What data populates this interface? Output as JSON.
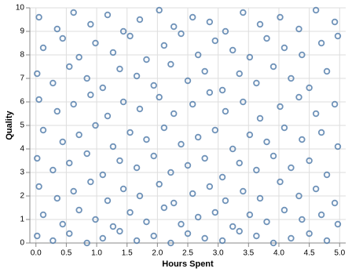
{
  "chart_data": {
    "type": "scatter",
    "x_label": "Hours Spent",
    "y_label": "Quality",
    "color": "#4c78a8",
    "grid": true,
    "xlim": [
      -0.1,
      5.1
    ],
    "ylim": [
      0,
      10
    ],
    "xticks": [
      {
        "value": 0,
        "label": "0.0"
      },
      0.5,
      {
        "value": 1,
        "label": "1.0"
      },
      1.5,
      {
        "value": 2,
        "label": "2.0"
      },
      2.5,
      {
        "value": 3,
        "label": "3.0"
      },
      3.5,
      {
        "value": 4,
        "label": "4.0"
      },
      4.5,
      {
        "value": 5,
        "label": "5.0"
      }
    ],
    "yticks": [
      0,
      1,
      2,
      3,
      4,
      5,
      6,
      7,
      8,
      9,
      10
    ],
    "x": [
      0.05,
      0.35,
      0.62,
      0.9,
      1.18,
      1.44,
      1.71,
      2.03,
      2.27,
      2.58,
      2.86,
      3.12,
      3.41,
      3.69,
      4.02,
      4.33,
      4.61,
      4.92,
      0.12,
      0.44,
      0.71,
      0.98,
      1.27,
      1.55,
      1.82,
      2.11,
      2.39,
      2.67,
      2.95,
      3.24,
      3.52,
      3.8,
      4.09,
      4.38,
      4.7,
      4.97,
      0.02,
      0.28,
      0.55,
      0.84,
      1.1,
      1.38,
      1.66,
      1.94,
      2.22,
      2.5,
      2.78,
      3.07,
      3.35,
      3.63,
      3.91,
      4.2,
      4.5,
      4.79,
      0.05,
      0.35,
      0.62,
      0.9,
      1.18,
      1.44,
      1.71,
      2.03,
      2.27,
      2.58,
      2.86,
      3.12,
      3.41,
      3.69,
      4.02,
      4.33,
      4.61,
      4.92,
      0.12,
      0.44,
      0.71,
      0.98,
      1.27,
      1.55,
      1.82,
      2.11,
      2.39,
      2.67,
      2.95,
      3.24,
      3.52,
      3.8,
      4.09,
      4.38,
      4.7,
      4.97,
      0.02,
      0.28,
      0.55,
      0.84,
      1.1,
      1.38,
      1.66,
      1.94,
      2.22,
      2.5,
      2.78,
      3.07,
      3.35,
      3.63,
      3.91,
      4.2,
      4.5,
      4.79,
      0.05,
      0.35,
      0.62,
      0.9,
      1.18,
      1.44,
      1.71,
      2.03,
      2.27,
      2.58,
      2.86,
      3.12,
      3.41,
      3.69,
      4.02,
      4.33,
      4.61,
      4.92,
      0.12,
      0.44,
      0.71,
      0.98,
      1.27,
      1.55,
      1.82,
      2.11,
      2.39,
      2.67,
      2.95,
      3.24,
      3.52,
      3.8,
      4.09,
      4.38,
      4.7,
      4.97,
      0.02,
      0.28,
      0.55,
      0.84,
      1.1,
      1.38,
      1.66,
      1.94,
      2.22,
      2.5,
      2.78,
      3.07,
      3.35,
      3.63,
      3.91,
      4.2,
      4.5,
      4.79
    ],
    "y": [
      9.6,
      9.1,
      9.8,
      9.3,
      9.7,
      9.0,
      9.5,
      9.9,
      9.2,
      9.6,
      9.4,
      9.0,
      9.8,
      9.3,
      9.6,
      9.1,
      9.9,
      9.4,
      8.3,
      8.7,
      7.9,
      8.5,
      8.1,
      8.8,
      7.8,
      8.4,
      8.9,
      8.0,
      8.6,
      8.2,
      7.9,
      8.7,
      8.3,
      8.0,
      8.5,
      8.8,
      7.2,
      6.8,
      7.5,
      7.0,
      6.6,
      7.4,
      7.1,
      6.7,
      7.6,
      6.9,
      7.3,
      6.5,
      7.2,
      6.8,
      7.5,
      7.0,
      6.6,
      7.3,
      6.1,
      5.6,
      5.9,
      6.3,
      5.4,
      6.0,
      5.7,
      6.2,
      5.5,
      5.9,
      6.4,
      5.6,
      6.0,
      5.3,
      5.8,
      6.2,
      5.5,
      5.9,
      4.8,
      4.3,
      4.6,
      5.0,
      4.1,
      4.7,
      4.4,
      4.9,
      4.2,
      4.5,
      4.8,
      4.0,
      4.6,
      4.3,
      4.9,
      4.4,
      4.7,
      4.1,
      3.6,
      3.1,
      3.4,
      3.8,
      2.9,
      3.5,
      3.2,
      3.7,
      3.0,
      3.3,
      3.6,
      2.8,
      3.4,
      3.1,
      3.7,
      3.2,
      3.5,
      2.9,
      2.4,
      1.9,
      2.2,
      2.6,
      1.8,
      2.3,
      2.0,
      2.5,
      1.7,
      2.1,
      2.4,
      1.8,
      2.2,
      1.9,
      2.6,
      2.0,
      2.3,
      1.7,
      1.2,
      0.8,
      1.4,
      1.0,
      0.7,
      1.3,
      0.9,
      1.5,
      0.8,
      1.1,
      1.3,
      0.7,
      1.2,
      0.9,
      1.4,
      1.0,
      1.2,
      0.8,
      0.3,
      0.1,
      0.4,
      0.0,
      0.2,
      0.5,
      0.1,
      0.3,
      0.0,
      0.4,
      0.2,
      0.1,
      0.5,
      0.3,
      0.0,
      0.2,
      0.4,
      0.1
    ]
  }
}
